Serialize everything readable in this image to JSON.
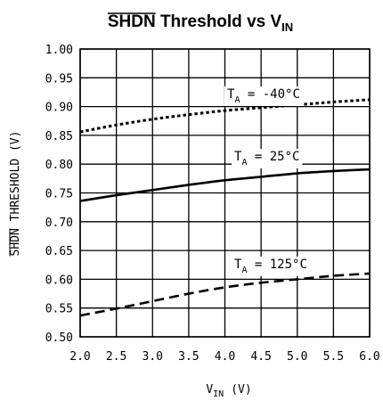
{
  "chart_data": {
    "type": "line",
    "title": {
      "overbar": "SHDN",
      "middle": " Threshold vs V",
      "sub": "IN"
    },
    "xlabel": {
      "main": "V",
      "sub": "IN",
      "unit": "(V)"
    },
    "ylabel": {
      "overbar": "SHDN",
      "rest": " THRESHOLD (V)"
    },
    "xlim": [
      2.0,
      6.0
    ],
    "ylim": [
      0.5,
      1.0
    ],
    "x_ticks": [
      "2.0",
      "2.5",
      "3.0",
      "3.5",
      "4.0",
      "4.5",
      "5.0",
      "5.5",
      "6.0"
    ],
    "y_ticks": [
      "0.50",
      "0.55",
      "0.60",
      "0.65",
      "0.70",
      "0.75",
      "0.80",
      "0.85",
      "0.90",
      "0.95",
      "1.00"
    ],
    "grid": true,
    "series": [
      {
        "name": {
          "main": "T",
          "sub": "A",
          "rest": " = -40°C"
        },
        "style": "dotted",
        "x": [
          2.0,
          2.5,
          3.0,
          3.5,
          4.0,
          4.5,
          5.0,
          5.5,
          6.0
        ],
        "y": [
          0.856,
          0.868,
          0.878,
          0.886,
          0.893,
          0.898,
          0.903,
          0.908,
          0.912
        ]
      },
      {
        "name": {
          "main": "T",
          "sub": "A",
          "rest": " = 25°C"
        },
        "style": "solid",
        "x": [
          2.0,
          2.5,
          3.0,
          3.5,
          4.0,
          4.5,
          5.0,
          5.5,
          6.0
        ],
        "y": [
          0.736,
          0.746,
          0.755,
          0.764,
          0.772,
          0.778,
          0.784,
          0.788,
          0.791
        ]
      },
      {
        "name": {
          "main": "T",
          "sub": "A",
          "rest": " = 125°C"
        },
        "style": "dashed",
        "x": [
          2.0,
          2.5,
          3.0,
          3.5,
          4.0,
          4.5,
          5.0,
          5.5,
          6.0
        ],
        "y": [
          0.537,
          0.549,
          0.562,
          0.575,
          0.586,
          0.594,
          0.6,
          0.606,
          0.61
        ]
      }
    ]
  }
}
